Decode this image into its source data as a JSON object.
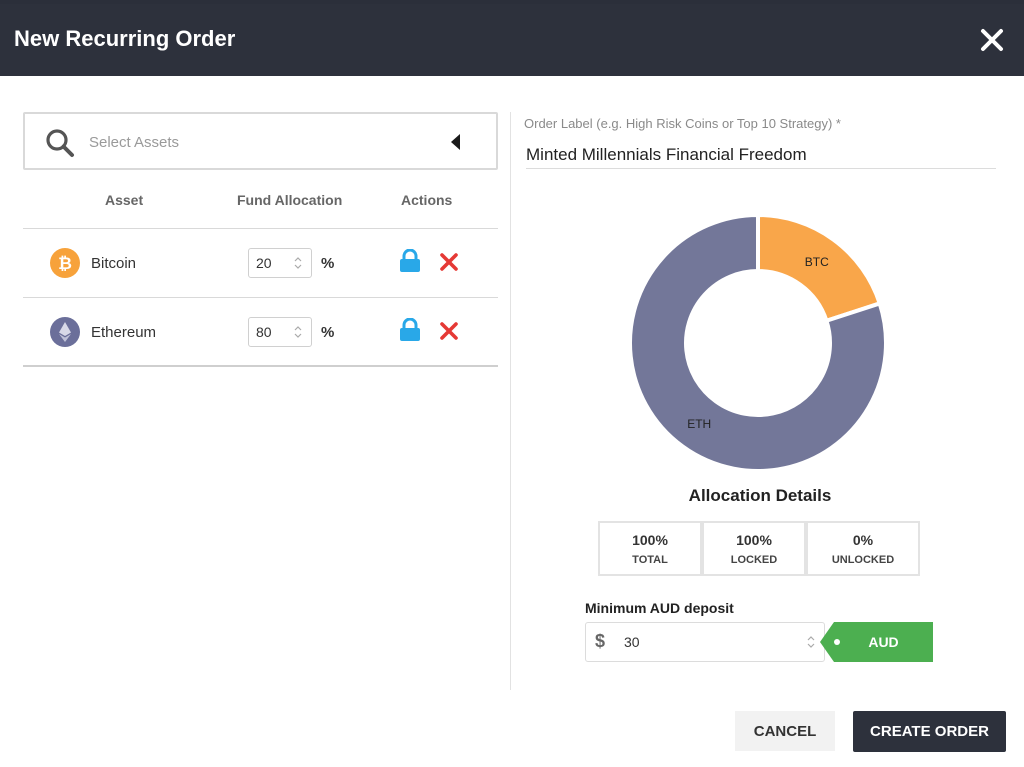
{
  "modal": {
    "title": "New Recurring Order",
    "close_icon": "close-icon"
  },
  "search": {
    "placeholder": "Select Assets",
    "icon": "search-icon",
    "toggle_icon": "caret-left-icon"
  },
  "table": {
    "headers": {
      "asset": "Asset",
      "fund_allocation": "Fund Allocation",
      "actions": "Actions"
    },
    "rows": [
      {
        "name": "Bitcoin",
        "allocation": "20",
        "unit": "%",
        "icon": "bitcoin-icon",
        "color": "#f7a23b"
      },
      {
        "name": "Ethereum",
        "allocation": "80",
        "unit": "%",
        "icon": "ethereum-icon",
        "color": "#6b6f9a"
      }
    ],
    "action_icons": [
      "lock-icon",
      "remove-icon"
    ]
  },
  "order_label": {
    "caption": "Order Label (e.g. High Risk Coins or Top 10 Strategy) *",
    "value": "Minted Millennials Financial Freedom"
  },
  "chart_data": {
    "type": "pie",
    "categories": [
      "BTC",
      "ETH"
    ],
    "values": [
      20,
      80
    ],
    "colors": [
      "#f9a64a",
      "#737799"
    ]
  },
  "allocation_details": {
    "title": "Allocation Details",
    "stats": [
      {
        "value": "100%",
        "label": "TOTAL"
      },
      {
        "value": "100%",
        "label": "LOCKED"
      },
      {
        "value": "0%",
        "label": "UNLOCKED"
      }
    ]
  },
  "deposit": {
    "label": "Minimum AUD deposit",
    "currency_symbol": "$",
    "value": "30",
    "currency": "AUD",
    "currency_color": "#4caf50"
  },
  "footer": {
    "cancel_label": "CANCEL",
    "create_label": "CREATE ORDER"
  },
  "colors": {
    "header_bg": "#2d313c",
    "accent_green": "#4caf50",
    "lock_blue": "#29a8e8",
    "remove_red": "#e53935"
  }
}
